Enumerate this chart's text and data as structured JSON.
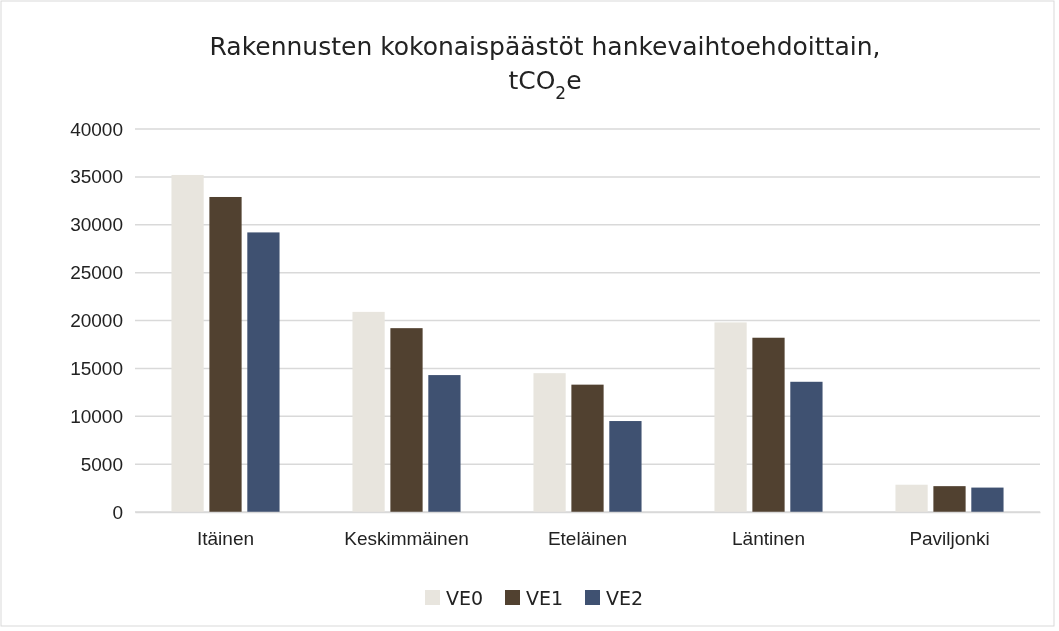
{
  "chart_data": {
    "type": "bar",
    "title": "Rakennusten kokonaispäästöt hankevaihtoehdoittain, tCO$_{2}$e",
    "categories": [
      "Itäinen",
      "Keskimmäinen",
      "Eteläinen",
      "Läntinen",
      "Paviljonki"
    ],
    "series": [
      {
        "name": "VE0",
        "color": "#e8e5de",
        "values": [
          35200,
          20900,
          14500,
          19800,
          2850
        ]
      },
      {
        "name": "VE1",
        "color": "#514130",
        "values": [
          32900,
          19200,
          13300,
          18200,
          2700
        ]
      },
      {
        "name": "VE2",
        "color": "#3f5171",
        "values": [
          29200,
          14300,
          9500,
          13600,
          2550
        ]
      }
    ],
    "ylim": [
      0,
      40000
    ],
    "yticks": [
      0,
      5000,
      10000,
      15000,
      20000,
      25000,
      30000,
      35000,
      40000
    ],
    "grid": "y",
    "legend": "bottom"
  }
}
